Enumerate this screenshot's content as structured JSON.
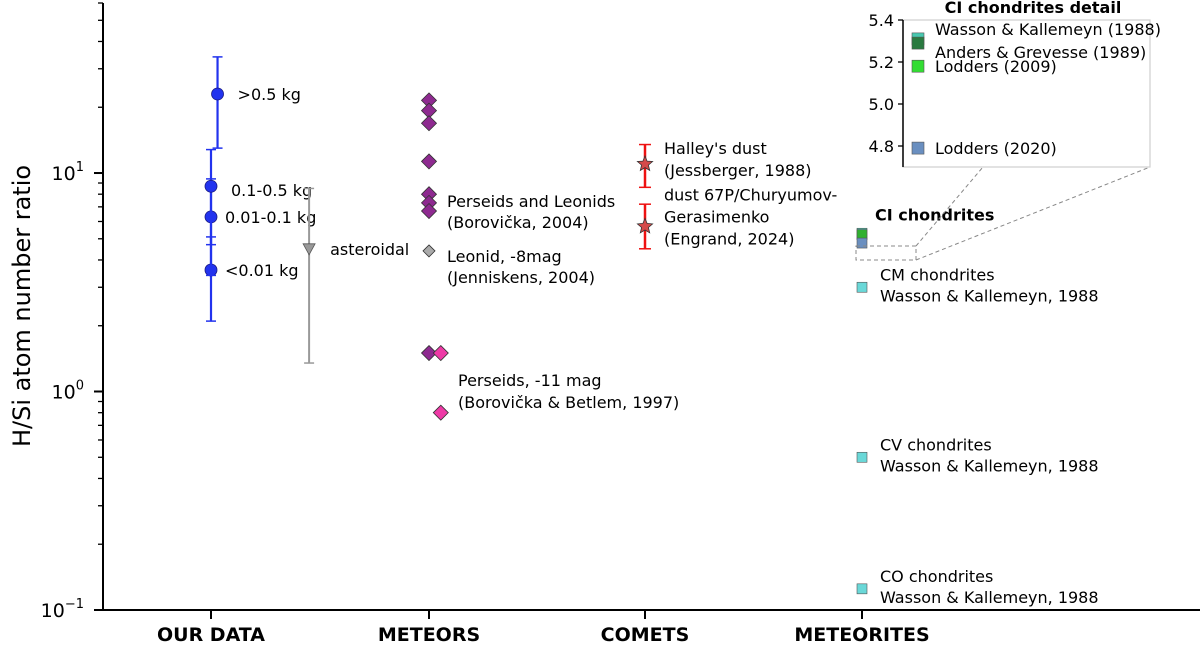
{
  "chart_data": [
    {
      "type": "scatter",
      "ylabel": "H/Si atom number ratio",
      "yscale": "log",
      "ylim": [
        0.1,
        60
      ],
      "categories": [
        "OUR DATA",
        "METEORS",
        "COMETS",
        "METEORITES"
      ],
      "y_ticks": [
        {
          "value": 0.1,
          "base": "10",
          "exp": "−1"
        },
        {
          "value": 1,
          "base": "10",
          "exp": "0"
        },
        {
          "value": 10,
          "base": "10",
          "exp": "1"
        }
      ],
      "our_data": {
        "color": "#2233ee",
        "points": [
          {
            "x": 0.84,
            "y": 3.6,
            "low": 2.1,
            "high": 5.1,
            "label": "<0.01 kg"
          },
          {
            "x": 0.9,
            "y": 6.3,
            "low": 3.4,
            "high": 9.4,
            "label": "0.01-0.1 kg"
          },
          {
            "x": 0.96,
            "y": 8.7,
            "low": 4.7,
            "high": 12.8,
            "label": "0.1-0.5 kg"
          },
          {
            "x": 1.03,
            "y": 23,
            "low": 13,
            "high": 34,
            "label": ">0.5 kg"
          }
        ]
      },
      "asteroidal": {
        "x": 1.45,
        "y": 4.5,
        "low": 1.35,
        "high": 8.5,
        "label": "asteroidal",
        "color": "#999999"
      },
      "meteors": {
        "perseids_leonids": {
          "color": "#8e2a90",
          "label_line1": "Perseids and Leonids",
          "label_line2": "(Borovička, 2004)",
          "points": [
            {
              "x": 2.0,
              "y": 21.5
            },
            {
              "x": 2.0,
              "y": 19.3
            },
            {
              "x": 2.0,
              "y": 16.9
            },
            {
              "x": 2.0,
              "y": 11.3
            },
            {
              "x": 2.0,
              "y": 8.0
            },
            {
              "x": 2.0,
              "y": 7.3
            },
            {
              "x": 2.0,
              "y": 6.7
            },
            {
              "x": 2.0,
              "y": 1.5
            }
          ]
        },
        "leonid": {
          "color": "#aaaaaa",
          "label_line1": "Leonid, -8mag",
          "label_line2": "(Jenniskens, 2004)",
          "points": [
            {
              "x": 2.0,
              "y": 4.4
            }
          ]
        },
        "perseids_bright": {
          "color": "#ee3aa6",
          "label_line1": "Perseids, -11 mag",
          "label_line2": "(Borovička & Betlem, 1997)",
          "points": [
            {
              "x": 2.05,
              "y": 1.5
            },
            {
              "x": 2.05,
              "y": 0.8
            }
          ]
        }
      },
      "comets": {
        "color": "#d54a4a",
        "bar_color": "#ee1111",
        "points": [
          {
            "x": 3.0,
            "y": 11.0,
            "low": 8.6,
            "high": 13.5,
            "label_line1": "Halley's dust",
            "label_line2": "(Jessberger, 1988)"
          },
          {
            "x": 3.0,
            "y": 5.7,
            "low": 4.5,
            "high": 7.2,
            "label_line1": "dust 67P/Churyumov-",
            "label_line2": "Gerasimenko",
            "label_line3": "(Engrand, 2024)"
          }
        ]
      },
      "meteorites": {
        "color": "#6ad8d8",
        "ci_label": "CI chondrites",
        "ci_points": [
          {
            "y": 5.3,
            "color": "#48c9b0"
          },
          {
            "y": 5.22,
            "color": "#30b030"
          },
          {
            "y": 4.78,
            "color": "#6a8fc0"
          }
        ],
        "groups": [
          {
            "y": 3.0,
            "label_line1": "CM chondrites",
            "label_line2": "Wasson & Kallemeyn, 1988"
          },
          {
            "y": 0.5,
            "label_line1": "CV chondrites",
            "label_line2": "Wasson & Kallemeyn, 1988"
          },
          {
            "y": 0.125,
            "label_line1": "CO chondrites",
            "label_line2": "Wasson & Kallemeyn, 1988"
          }
        ]
      }
    },
    {
      "type": "scatter",
      "title": "CI chondrites detail",
      "ylim": [
        4.7,
        5.4
      ],
      "y_ticks": [
        "4.8",
        "5.0",
        "5.2",
        "5.4"
      ],
      "points": [
        {
          "y": 5.31,
          "color": "#48c9b0",
          "label": "Wasson & Kallemeyn (1988)"
        },
        {
          "y": 5.29,
          "color": "#2a7a40",
          "label": "Anders & Grevesse (1989)"
        },
        {
          "y": 5.18,
          "color": "#33dd33",
          "label": "Lodders (2009)"
        },
        {
          "y": 4.79,
          "color": "#6a8fc0",
          "label": "Lodders (2020)"
        }
      ]
    }
  ]
}
